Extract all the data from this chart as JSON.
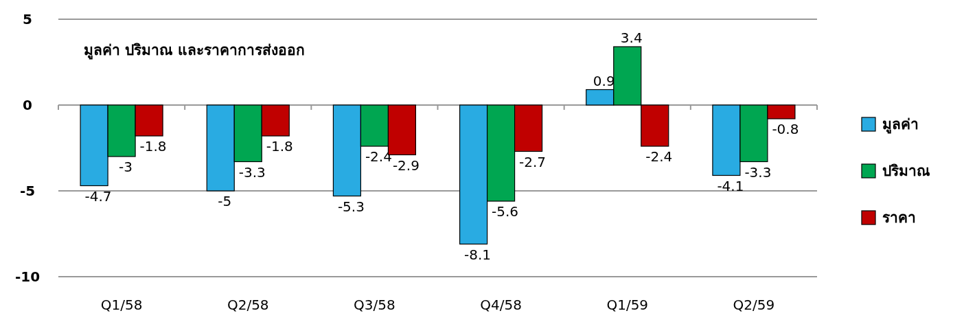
{
  "chart_data": {
    "type": "bar",
    "title": "มูลค่า ปริมาณ และราคาการส่งออก",
    "categories": [
      "Q1/58",
      "Q2/58",
      "Q3/58",
      "Q4/58",
      "Q1/59",
      "Q2/59"
    ],
    "series": [
      {
        "name": "มูลค่า",
        "color": "#29abe2",
        "values": [
          -4.7,
          -5,
          -5.3,
          -8.1,
          0.9,
          -4.1
        ]
      },
      {
        "name": "ปริมาณ",
        "color": "#00a651",
        "values": [
          -3,
          -3.3,
          -2.4,
          -5.6,
          3.4,
          -3.3
        ]
      },
      {
        "name": "ราคา",
        "color": "#c00000",
        "values": [
          -1.8,
          -1.8,
          -2.9,
          -2.7,
          -2.4,
          -0.8
        ]
      }
    ],
    "ylim": [
      -10,
      5
    ],
    "yticks": [
      -10,
      -5,
      0,
      5
    ],
    "grid": "y",
    "legend": "right",
    "data_labels": true
  }
}
